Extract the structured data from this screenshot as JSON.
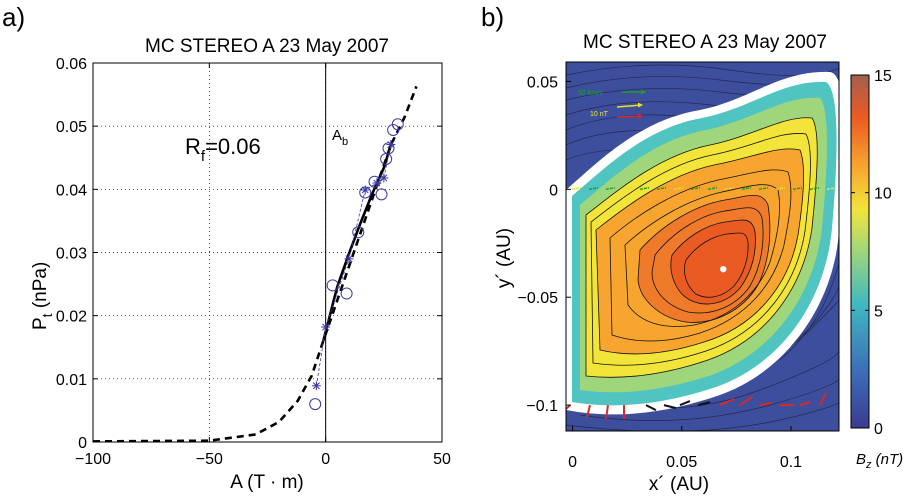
{
  "chart_data": [
    {
      "panel_label": "a)",
      "type": "scatter",
      "title": "MC STEREO A   23 May 2007",
      "xlabel": "A (T · m)",
      "ylabel_main": "P",
      "ylabel_sub": "t",
      "ylabel_rest": " (nPa)",
      "xlim": [
        -100,
        50
      ],
      "ylim": [
        0,
        0.06
      ],
      "xticks": [
        "−100",
        "−50",
        "0",
        "50"
      ],
      "xtick_values": [
        -100,
        -50,
        0,
        50
      ],
      "yticks": [
        "0",
        "0.01",
        "0.02",
        "0.03",
        "0.04",
        "0.05",
        "0.06"
      ],
      "ytick_values": [
        0,
        0.01,
        0.02,
        0.03,
        0.04,
        0.05,
        0.06
      ],
      "grid": "dotted",
      "annotation_rf_main": "R",
      "annotation_rf_sub": "f",
      "annotation_rf_rest": "=0.06",
      "annotation_ab_main": "A",
      "annotation_ab_sub": "b",
      "ab_x": 0,
      "circles": [
        [
          -4.5,
          0.006
        ],
        [
          3,
          0.0248
        ],
        [
          9,
          0.0235
        ],
        [
          14,
          0.0332
        ],
        [
          17,
          0.0395
        ],
        [
          21,
          0.0412
        ],
        [
          24,
          0.0392
        ],
        [
          26,
          0.0448
        ],
        [
          27,
          0.0465
        ],
        [
          29,
          0.0494
        ],
        [
          31,
          0.0503
        ]
      ],
      "stars": [
        [
          -4,
          0.0089
        ],
        [
          0,
          0.0182
        ],
        [
          10,
          0.029
        ],
        [
          17,
          0.0399
        ],
        [
          22,
          0.041
        ],
        [
          25,
          0.0418
        ],
        [
          28,
          0.0471
        ]
      ],
      "fit_solid": [
        [
          -1,
          0.016
        ],
        [
          5,
          0.0246
        ],
        [
          10,
          0.0298
        ],
        [
          15,
          0.0347
        ],
        [
          20,
          0.0393
        ],
        [
          25,
          0.0434
        ],
        [
          28,
          0.047
        ]
      ],
      "fit_dashed": [
        [
          -100,
          0.0001
        ],
        [
          -50,
          0.0002
        ],
        [
          -30,
          0.0012
        ],
        [
          -20,
          0.0032
        ],
        [
          -12,
          0.0065
        ],
        [
          -6,
          0.0105
        ],
        [
          -1,
          0.016
        ],
        [
          28,
          0.047
        ],
        [
          34,
          0.0515
        ],
        [
          39,
          0.0563
        ]
      ]
    },
    {
      "panel_label": "b)",
      "type": "heatmap",
      "title": "MC STEREO A   23 May 2007",
      "xlabel": "x´ (AU)",
      "ylabel": "y´ (AU)",
      "xlim": [
        -0.003,
        0.122
      ],
      "ylim": [
        -0.112,
        0.059
      ],
      "xticks": [
        "0",
        "0.05",
        "0.1"
      ],
      "xtick_values": [
        0,
        0.05,
        0.1
      ],
      "yticks": [
        "0.05",
        "0",
        "−0.05",
        "−0.1"
      ],
      "ytick_values": [
        0.05,
        0,
        -0.05,
        -0.1
      ],
      "colorbar_ticks": [
        "0",
        "5",
        "10",
        "15"
      ],
      "colorbar_values": [
        0,
        5,
        10,
        15
      ],
      "colorbar_label_main": "B",
      "colorbar_label_sub": "z",
      "colorbar_label_rest": " (nT)",
      "colorbar_range": [
        0,
        15
      ],
      "legend_velocity": "50 km/s",
      "legend_field": "10 nT",
      "center_marker": [
        0.069,
        -0.037
      ],
      "colors": {
        "velocity": "#1e9e2a",
        "field": "#e8e02a",
        "vector": "#d62a2a"
      }
    }
  ]
}
